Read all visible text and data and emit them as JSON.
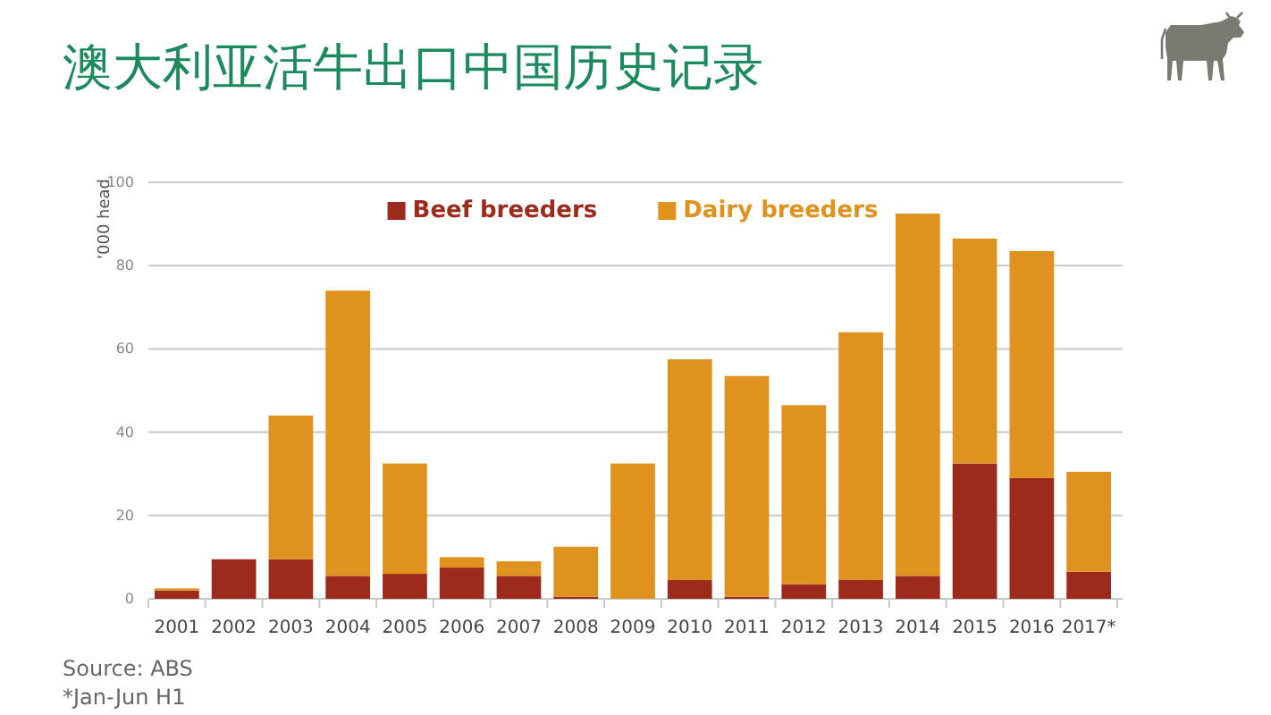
{
  "chart_data": {
    "type": "bar",
    "title": "澳大利亚活牛出口中国历史记录",
    "ylabel": "'000 head",
    "categories": [
      "2001",
      "2002",
      "2003",
      "2004",
      "2005",
      "2006",
      "2007",
      "2008",
      "2009",
      "2010",
      "2011",
      "2012",
      "2013",
      "2014",
      "2015",
      "2016",
      "2017*"
    ],
    "series": [
      {
        "name": "Beef breeders",
        "color": "#9c2a1d",
        "values": [
          2,
          9.5,
          9.5,
          5.5,
          6,
          7.5,
          5.5,
          0.5,
          null,
          4.5,
          0.5,
          3.5,
          4.5,
          5.5,
          32.5,
          29,
          6.5
        ]
      },
      {
        "name": "Dairy breeders",
        "color": "#e0921f",
        "values": [
          0.5,
          null,
          34.5,
          68.5,
          26.5,
          2.5,
          3.5,
          12,
          32.5,
          53,
          53,
          43,
          59.5,
          87,
          54,
          54.5,
          24
        ]
      }
    ],
    "stacked": true,
    "ylim": [
      0,
      100
    ],
    "yticks": [
      0,
      20,
      40,
      60,
      80,
      100
    ],
    "grid": "y",
    "legend": "top",
    "annotations": [
      "Source: ABS",
      "*Jan-Jun H1"
    ]
  }
}
